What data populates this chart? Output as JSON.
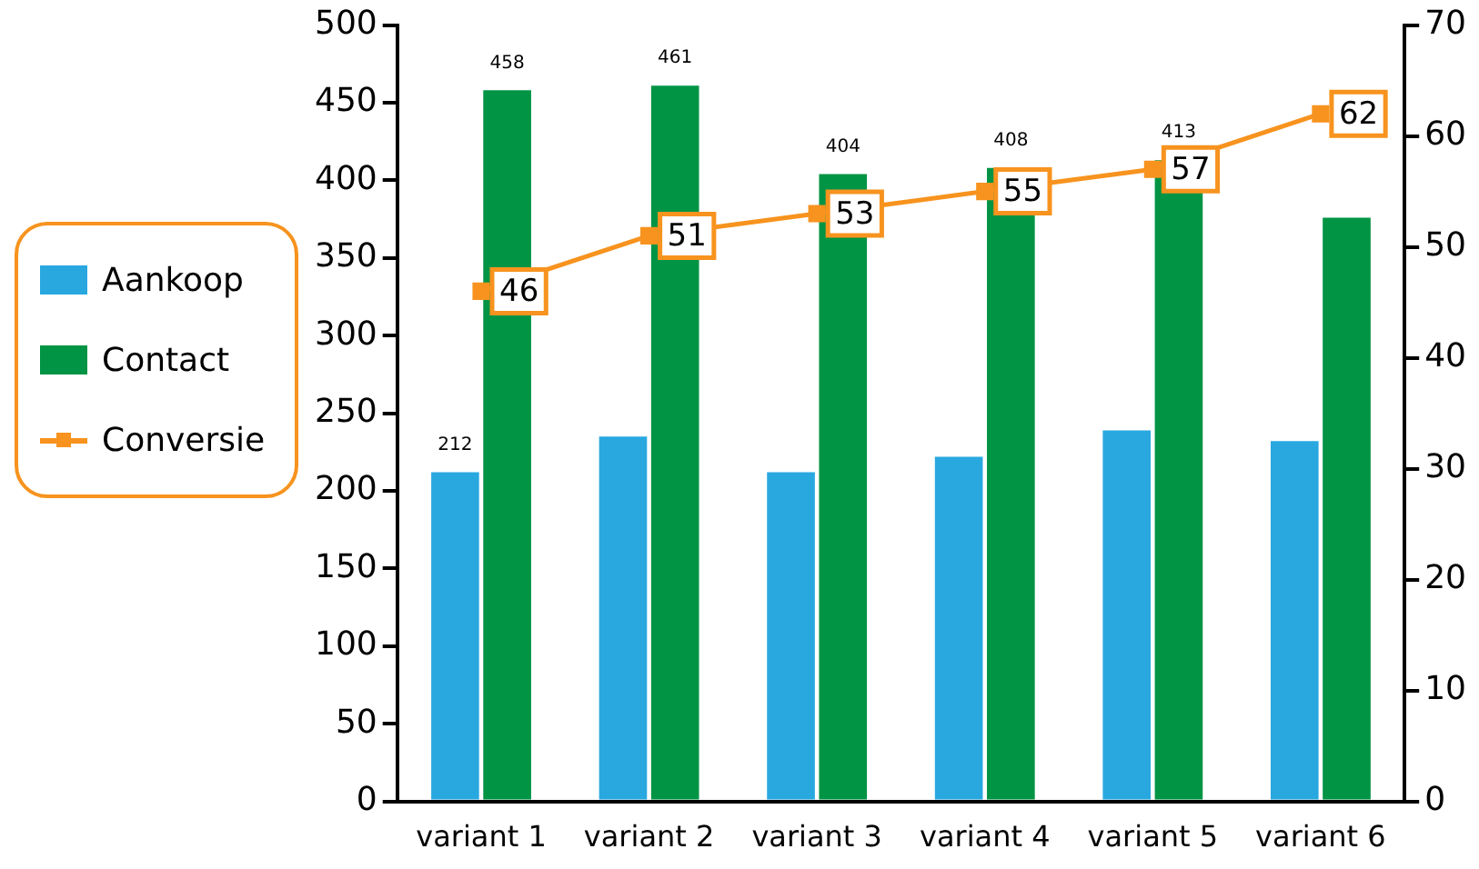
{
  "chart_data": {
    "type": "bar",
    "categories": [
      "variant 1",
      "variant 2",
      "variant 3",
      "variant 4",
      "variant 5",
      "variant 6"
    ],
    "series": [
      {
        "name": "Aankoop",
        "color": "#29a8e0",
        "values": [
          212,
          235,
          212,
          222,
          239,
          232
        ],
        "value_labels": [
          "212",
          null,
          null,
          null,
          null,
          null
        ]
      },
      {
        "name": "Contact",
        "color": "#009444",
        "values": [
          458,
          461,
          404,
          408,
          413,
          376
        ],
        "value_labels": [
          "458",
          "461",
          "404",
          "408",
          "413",
          null
        ]
      },
      {
        "name": "Conversie",
        "type": "line",
        "axis": "y2",
        "color": "#f7931e",
        "marker": "square",
        "values": [
          46,
          51,
          53,
          55,
          57,
          62
        ],
        "value_labels": [
          "46",
          "51",
          "53",
          "55",
          "57",
          "62"
        ]
      }
    ],
    "ylim": [
      0,
      500
    ],
    "yticks": [
      0,
      50,
      100,
      150,
      200,
      250,
      300,
      350,
      400,
      450,
      500
    ],
    "y2lim": [
      0,
      70
    ],
    "y2ticks": [
      0,
      10,
      20,
      30,
      40,
      50,
      60,
      70
    ],
    "grid": false,
    "legend": "left"
  }
}
